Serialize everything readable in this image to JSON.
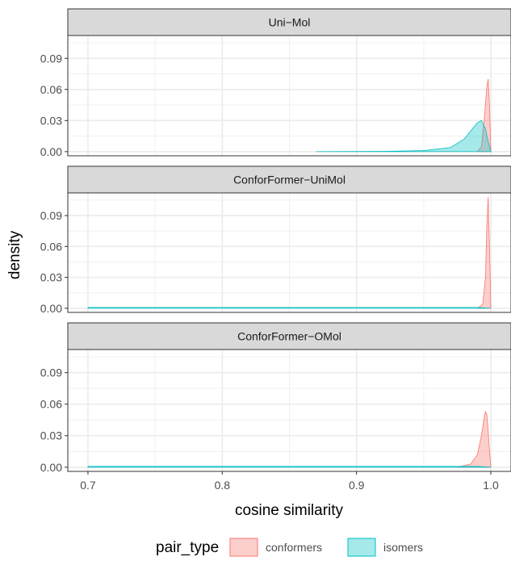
{
  "chart_data": {
    "type": "area",
    "title": "",
    "xlabel": "cosine similarity",
    "ylabel": "density",
    "xlim": [
      0.685,
      1.015
    ],
    "ylim": [
      -0.004,
      0.112
    ],
    "x_ticks": [
      0.7,
      0.8,
      0.9,
      1.0
    ],
    "x_tick_labels": [
      "0.7",
      "0.8",
      "0.9",
      "1.0"
    ],
    "y_ticks": [
      0.0,
      0.03,
      0.06,
      0.09
    ],
    "y_tick_labels": [
      "0.00",
      "0.03",
      "0.06",
      "0.09"
    ],
    "grid": true,
    "legend": {
      "title": "pair_type",
      "position": "bottom",
      "entries": [
        {
          "label": "conformers",
          "fill": "#F8766D"
        },
        {
          "label": "isomers",
          "fill": "#00BFC4"
        }
      ]
    },
    "panels": [
      {
        "label": "Uni−Mol",
        "series": [
          {
            "name": "conformers",
            "x": [
              0.99,
              0.993,
              0.995,
              0.997,
              0.998,
              0.999,
              1.0
            ],
            "y": [
              0.0,
              0.005,
              0.03,
              0.062,
              0.07,
              0.045,
              0.0
            ]
          },
          {
            "name": "isomers",
            "x": [
              0.87,
              0.92,
              0.95,
              0.97,
              0.98,
              0.985,
              0.99,
              0.993,
              0.996,
              0.998,
              1.0
            ],
            "y": [
              0.0,
              0.0003,
              0.001,
              0.004,
              0.012,
              0.02,
              0.028,
              0.03,
              0.022,
              0.01,
              0.0
            ]
          }
        ]
      },
      {
        "label": "ConforFormer−UniMol",
        "series": [
          {
            "name": "conformers",
            "x": [
              0.99,
              0.994,
              0.996,
              0.997,
              0.998,
              0.999,
              1.0
            ],
            "y": [
              0.0,
              0.004,
              0.03,
              0.08,
              0.108,
              0.06,
              0.0
            ]
          },
          {
            "name": "isomers",
            "x": [
              0.7,
              0.9,
              0.97,
              0.99,
              1.0
            ],
            "y": [
              0.0008,
              0.0008,
              0.0008,
              0.0008,
              0.0
            ]
          }
        ]
      },
      {
        "label": "ConforFormer−OMol",
        "series": [
          {
            "name": "conformers",
            "x": [
              0.975,
              0.985,
              0.99,
              0.993,
              0.995,
              0.996,
              0.997,
              0.998,
              0.999,
              1.0
            ],
            "y": [
              0.0,
              0.003,
              0.012,
              0.03,
              0.047,
              0.053,
              0.05,
              0.035,
              0.015,
              0.0
            ]
          },
          {
            "name": "isomers",
            "x": [
              0.7,
              0.9,
              0.97,
              0.99,
              1.0
            ],
            "y": [
              0.0008,
              0.0008,
              0.0008,
              0.0008,
              0.0
            ]
          }
        ]
      }
    ]
  }
}
